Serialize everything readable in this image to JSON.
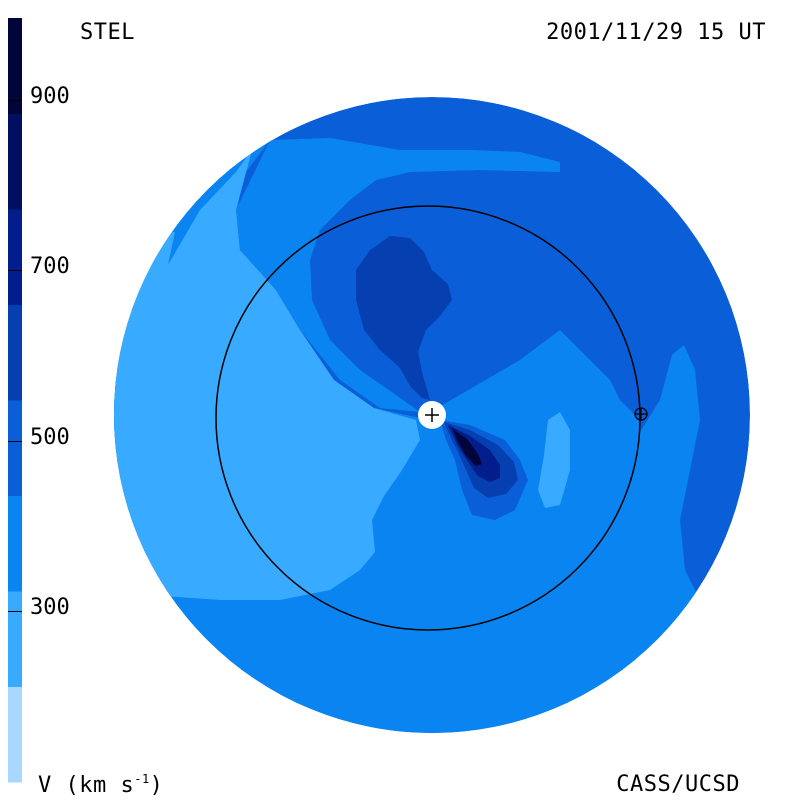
{
  "header": {
    "source_label": "STEL",
    "datetime_label": "2001/11/29 15 UT"
  },
  "footer": {
    "units_label_main": "V (km s",
    "units_label_sup": "-1",
    "units_label_end": ")",
    "credit_label": "CASS/UCSD"
  },
  "colorbar": {
    "tick_labels": [
      "900",
      "700",
      "500",
      "300"
    ],
    "tick_values": [
      900,
      700,
      500,
      300
    ],
    "range": [
      100,
      1000
    ],
    "band_colors": [
      "#a8d8ff",
      "#38aaff",
      "#0a84f0",
      "#0a5fd8",
      "#053fb0",
      "#031e8c",
      "#020f60",
      "#01053a"
    ]
  },
  "map": {
    "colors": {
      "outer_dark": "#0a5fd8",
      "mid": "#0a84f0",
      "light": "#38aaff",
      "dark": "#053fb0",
      "darker": "#031e8c",
      "darkest": "#01053a",
      "earth_orbit": "#000000",
      "sun": "#ffffff"
    },
    "center_symbol": "+",
    "earth_symbol": "⊕"
  }
}
